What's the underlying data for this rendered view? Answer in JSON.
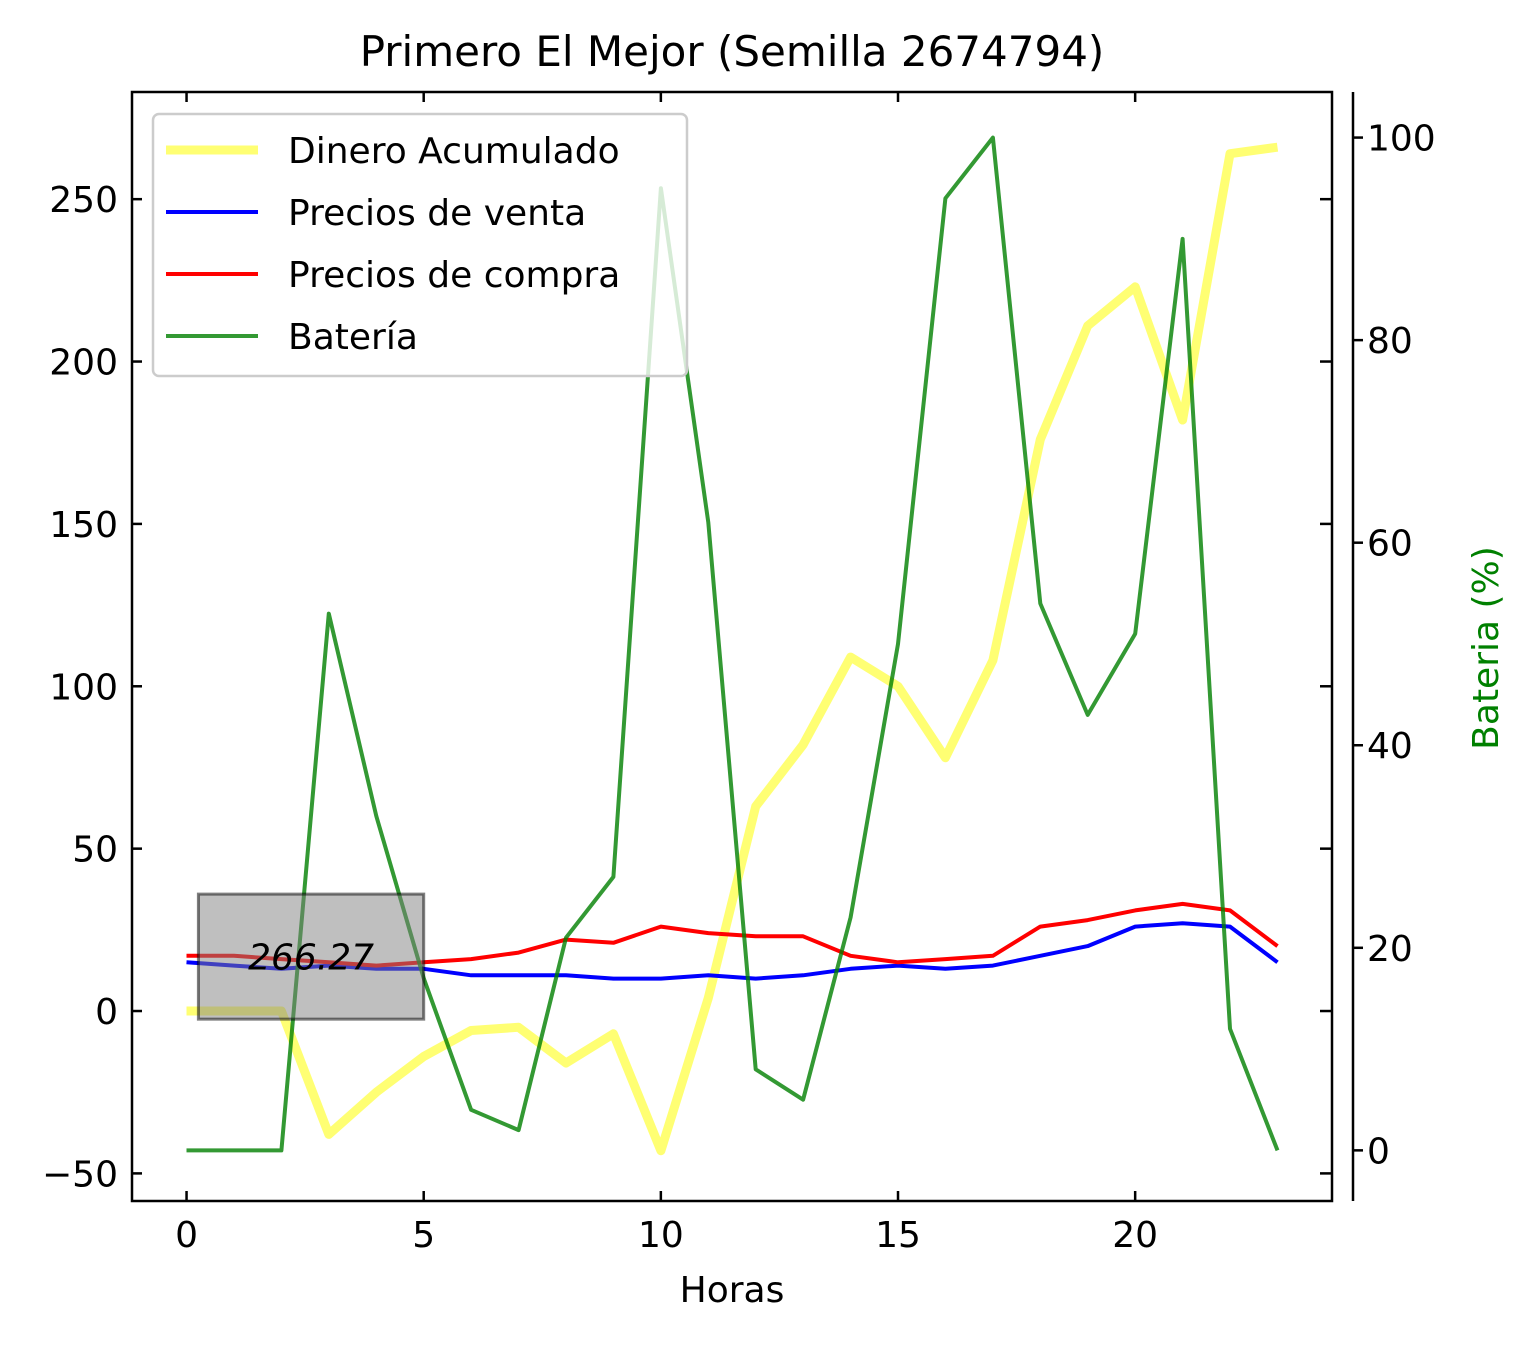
{
  "chart_data": {
    "type": "line",
    "title": "Primero El Mejor (Semilla 2674794)",
    "xlabel": "Horas",
    "ylabel_left": "",
    "ylabel_right": "Bateria (%)",
    "xlim": [
      -1.15,
      24.15
    ],
    "ylim_left": [
      -58.5,
      283
    ],
    "ylim_right": [
      -5,
      104.5
    ],
    "x_ticks": [
      0,
      5,
      10,
      15,
      20
    ],
    "y_left_ticks": [
      -50,
      0,
      50,
      100,
      150,
      200,
      250
    ],
    "y_right_ticks": [
      0,
      20,
      40,
      60,
      80,
      100
    ],
    "x": [
      0,
      1,
      2,
      3,
      4,
      5,
      6,
      7,
      8,
      9,
      10,
      11,
      12,
      13,
      14,
      15,
      16,
      17,
      18,
      19,
      20,
      21,
      22,
      23
    ],
    "legend_position": "upper left",
    "series": [
      {
        "name": "Dinero Acumulado",
        "axis": "left",
        "color": "#ffff00",
        "opacity": 0.55,
        "values": [
          0,
          0,
          0,
          -38,
          -25,
          -14,
          -6,
          -5,
          -16,
          -7,
          -43,
          4,
          63,
          82,
          109,
          100,
          78,
          108,
          176,
          211,
          223,
          182,
          264,
          266
        ]
      },
      {
        "name": "Precios de venta",
        "axis": "left",
        "color": "#0000ff",
        "opacity": 1,
        "values": [
          15,
          14,
          13,
          14,
          13,
          13,
          11,
          11,
          11,
          10,
          10,
          11,
          10,
          11,
          13,
          14,
          13,
          14,
          17,
          20,
          26,
          27,
          26,
          15
        ]
      },
      {
        "name": "Precios de compra",
        "axis": "left",
        "color": "#ff0000",
        "opacity": 1,
        "values": [
          17,
          17,
          16,
          15,
          14,
          15,
          16,
          18,
          22,
          21,
          26,
          24,
          23,
          23,
          17,
          15,
          16,
          17,
          26,
          28,
          31,
          33,
          31,
          20
        ]
      },
      {
        "name": "Batería",
        "axis": "right",
        "color": "#008000",
        "opacity": 0.8,
        "values": [
          0,
          0,
          0,
          53,
          33,
          17,
          4,
          2,
          21,
          27,
          95,
          62,
          8,
          5,
          23,
          50,
          94,
          100,
          54,
          43,
          51,
          90,
          12,
          0
        ]
      }
    ],
    "annotation": {
      "text": "266.27",
      "x_start": 0.25,
      "x_end": 5,
      "y_low": -2.5,
      "y_high": 36
    }
  },
  "colors": {
    "right_axis_label": "#008000",
    "annotation_fill": "#7f7f7f",
    "annotation_border": "#000000"
  }
}
